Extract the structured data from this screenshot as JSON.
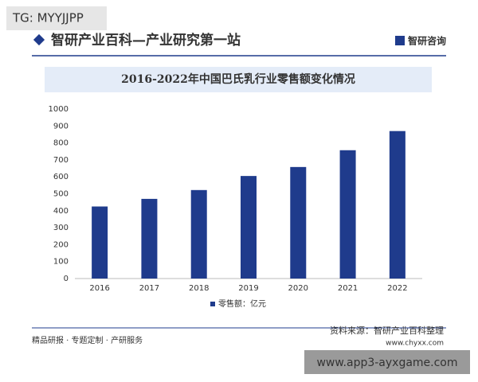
{
  "tag": "TG: MYYJJPP",
  "header": {
    "title": "智研产业百科—产业研究第一站",
    "logo": "智研咨询"
  },
  "footer": {
    "left": "精品研报 · 专题定制 · 产研服务",
    "source": "资料来源：智研产业百科整理",
    "site": "www.chyxx.com",
    "watermark": "www.app3-ayxgame.com"
  },
  "chart_data": {
    "type": "bar",
    "title": "2016-2022年中国巴氏乳行业零售额变化情况",
    "categories": [
      "2016",
      "2017",
      "2018",
      "2019",
      "2020",
      "2021",
      "2022"
    ],
    "series": [
      {
        "name": "零售额：亿元",
        "color": "#1f3b8c",
        "values": [
          425,
          470,
          522,
          605,
          658,
          757,
          870
        ]
      }
    ],
    "ylim": [
      0,
      1000
    ],
    "yticks": [
      0,
      100,
      200,
      300,
      400,
      500,
      600,
      700,
      800,
      900,
      1000
    ],
    "grid": false,
    "legend": "bottom"
  }
}
